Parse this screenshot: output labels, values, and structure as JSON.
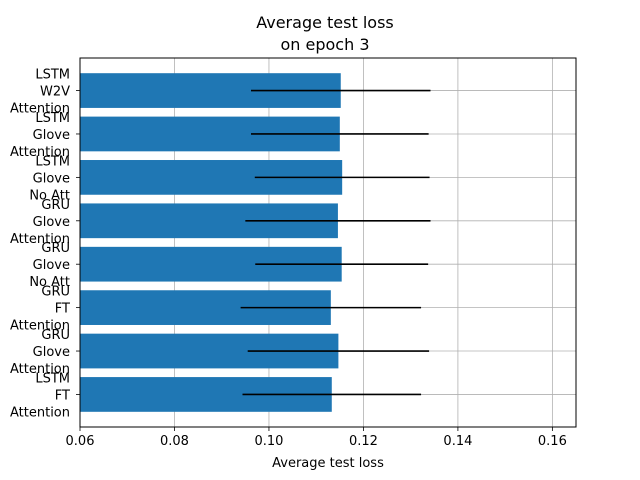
{
  "chart_data": {
    "type": "bar",
    "orientation": "horizontal",
    "title": [
      "Average test loss",
      "on epoch 3"
    ],
    "xlabel": "Average test loss",
    "ylabel": "",
    "xlim": [
      0.06,
      0.165
    ],
    "xticks": [
      "0.06",
      "0.08",
      "0.10",
      "0.12",
      "0.14",
      "0.16"
    ],
    "grid": true,
    "bar_color": "#1f77b4",
    "errorbar_color": "#000000",
    "categories": [
      [
        "LSTM",
        "W2V",
        "Attention"
      ],
      [
        "LSTM",
        "Glove",
        "Attention"
      ],
      [
        "LSTM",
        "Glove",
        "No Att"
      ],
      [
        "GRU",
        "Glove",
        "Attention"
      ],
      [
        "GRU",
        "Glove",
        "No Att"
      ],
      [
        "GRU",
        "FT",
        "Attention"
      ],
      [
        "GRU",
        "Glove",
        "Attention"
      ],
      [
        "LSTM",
        "FT",
        "Attention"
      ]
    ],
    "values": [
      0.1152,
      0.115,
      0.1155,
      0.1146,
      0.1154,
      0.1131,
      0.1147,
      0.1133
    ],
    "errors": [
      0.019,
      0.0188,
      0.0185,
      0.0196,
      0.0183,
      0.0191,
      0.0192,
      0.0189
    ]
  }
}
